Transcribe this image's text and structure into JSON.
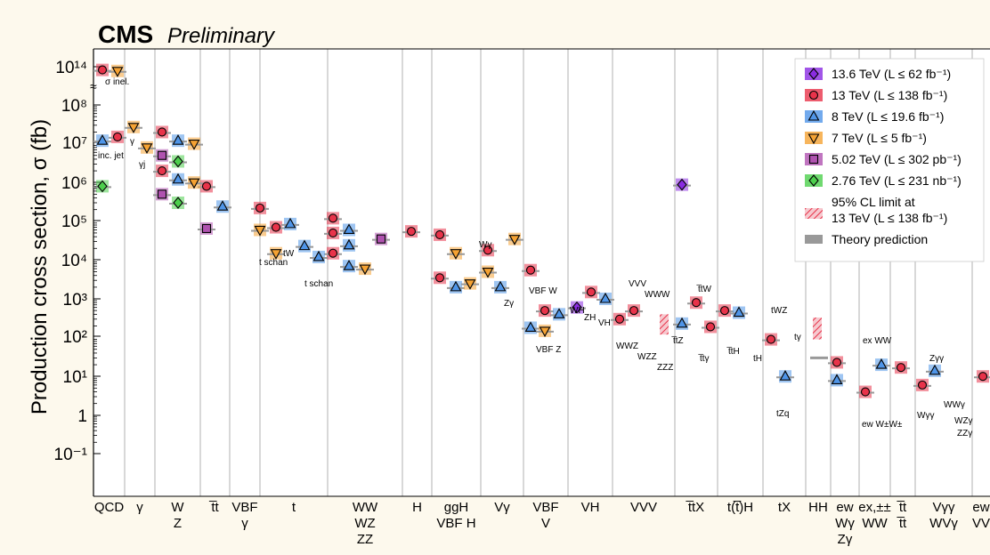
{
  "header": {
    "experiment": "CMS",
    "status": "Preliminary"
  },
  "chart_data": {
    "type": "scatter",
    "ylabel": "Production cross section, σ (fb)",
    "yscale": "log",
    "y_tick_labels": [
      "10¹⁴",
      "10⁸",
      "10⁷",
      "10⁶",
      "10⁵",
      "10⁴",
      "10³",
      "10²",
      "10¹",
      "1",
      "10⁻¹"
    ],
    "groups": [
      {
        "lines": [
          "QCD"
        ]
      },
      {
        "lines": [
          "γ"
        ]
      },
      {
        "lines": [
          "W",
          "Z"
        ]
      },
      {
        "lines": [
          "t̅t"
        ]
      },
      {
        "lines": [
          "VBF",
          "γ"
        ]
      },
      {
        "lines": [
          "t"
        ]
      },
      {
        "lines": [
          "WW",
          "WZ",
          "ZZ"
        ]
      },
      {
        "lines": [
          "H"
        ]
      },
      {
        "lines": [
          "ggH",
          "VBF H"
        ]
      },
      {
        "lines": [
          "Vγ"
        ]
      },
      {
        "lines": [
          "VBF",
          "V"
        ]
      },
      {
        "lines": [
          "VH"
        ]
      },
      {
        "lines": [
          "VVV"
        ]
      },
      {
        "lines": [
          "t̅tX"
        ]
      },
      {
        "lines": [
          "t(t̅)H"
        ]
      },
      {
        "lines": [
          "tX"
        ]
      },
      {
        "lines": [
          "HH"
        ]
      },
      {
        "lines": [
          "ew",
          "Wγ",
          "Zγ"
        ]
      },
      {
        "lines": [
          "ex,±±",
          "WW"
        ]
      },
      {
        "lines": [
          "t̅t",
          "t̅t"
        ]
      },
      {
        "lines": [
          "Vγγ",
          "WVγ"
        ]
      },
      {
        "lines": [
          "ew",
          "VV"
        ]
      }
    ],
    "legend": {
      "position": "top-right",
      "entries": [
        {
          "label": "13.6 TeV (L ≤ 62 fb⁻¹)",
          "color": "#8a2be2",
          "marker": "diamond"
        },
        {
          "label": "13 TeV (L ≤ 138 fb⁻¹)",
          "color": "#e8334a",
          "marker": "circle"
        },
        {
          "label": "8 TeV (L ≤ 19.6 fb⁻¹)",
          "color": "#4f95e8",
          "marker": "triangle-up"
        },
        {
          "label": "7 TeV (L ≤ 5 fb⁻¹)",
          "color": "#f5a233",
          "marker": "triangle-down"
        },
        {
          "label": "5.02 TeV (L ≤ 302 pb⁻¹)",
          "color": "#b052b0",
          "marker": "square"
        },
        {
          "label": "2.76 TeV (L ≤ 231 nb⁻¹)",
          "color": "#4ccf4c",
          "marker": "diamond"
        },
        {
          "label": "95% CL limit at",
          "label2": "13 TeV (L ≤ 138 fb⁻¹)",
          "color": "#e8334a",
          "marker": "hatch"
        },
        {
          "label": "Theory prediction",
          "color": "#999999",
          "marker": "bar"
        }
      ]
    },
    "annotations": [
      "σ inel.",
      "inc. jet",
      "γ",
      "γj",
      "t schan",
      "tW",
      "t schan",
      "Wγ",
      "Zγ",
      "VBF W",
      "VBF Z",
      "WH",
      "ZH",
      "VH",
      "VVV",
      "WWW",
      "WWZ",
      "WZZ",
      "ZZZ",
      "t̅tW",
      "t̅tZ",
      "t̅tγ",
      "t̅tH",
      "tH",
      "tWZ",
      "tγ",
      "tZq",
      "ex WW",
      "ew W±W±",
      "Zγγ",
      "Wγγ",
      "WWγ",
      "WZγ",
      "ZZγ"
    ],
    "series": [
      {
        "name": "13.6 TeV (L ≤ 62 fb⁻¹)",
        "points": [
          {
            "group": "t̅tX",
            "label": "t̅t",
            "y": 880000
          },
          {
            "group": "VH",
            "label": "VH",
            "y": 600
          }
        ]
      },
      {
        "name": "13 TeV (L ≤ 138 fb⁻¹)",
        "points": [
          {
            "group": "QCD",
            "label": "σ inel.",
            "y": 50000000000000.0
          },
          {
            "group": "QCD",
            "label": "inc. jet",
            "y": 15000000.0
          },
          {
            "group": "W",
            "label": "W",
            "y": 20000000.0
          },
          {
            "group": "Z",
            "label": "Z",
            "y": 2000000.0
          },
          {
            "group": "t̅t",
            "label": "t̅t",
            "y": 800000.0
          },
          {
            "group": "t",
            "label": "t",
            "y": 220000.0
          },
          {
            "group": "t",
            "label": "tW",
            "y": 70000.0
          },
          {
            "group": "WW",
            "label": "WW",
            "y": 120000.0
          },
          {
            "group": "WZ",
            "label": "WZ",
            "y": 50000.0
          },
          {
            "group": "ZZ",
            "label": "ZZ",
            "y": 15000.0
          },
          {
            "group": "H",
            "label": "H",
            "y": 55000.0
          },
          {
            "group": "ggH",
            "label": "ggH",
            "y": 45000.0
          },
          {
            "group": "VBF H",
            "label": "VBF H",
            "y": 3500.0
          },
          {
            "group": "Vγ",
            "label": "Wγ",
            "y": 18000.0
          },
          {
            "group": "VBF V",
            "label": "VBF W",
            "y": 5500.0
          },
          {
            "group": "VBF V",
            "label": "VBF Z",
            "y": 500
          },
          {
            "group": "VH",
            "label": "WH",
            "y": 1500.0
          },
          {
            "group": "VVV",
            "label": "WWZ",
            "y": 300
          },
          {
            "group": "VVV",
            "label": "WWW",
            "y": 500
          },
          {
            "group": "t̅tX",
            "label": "t̅tW",
            "y": 800
          },
          {
            "group": "t̅tX",
            "label": "t̅tγ",
            "y": 190
          },
          {
            "group": "t(t̅)H",
            "label": "t̅tH",
            "y": 500
          },
          {
            "group": "tX",
            "label": "tZq",
            "y": 90
          },
          {
            "group": "ew Wγ",
            "label": "Wγ",
            "y": 23
          },
          {
            "group": "ex WW",
            "label": "W±W±",
            "y": 4
          },
          {
            "group": "t̅t t̅t",
            "label": "t̅tt̅t",
            "y": 17
          },
          {
            "group": "Vγγ",
            "label": "Wγγ",
            "y": 6
          },
          {
            "group": "ew VV",
            "label": "VV",
            "y": 10
          }
        ]
      },
      {
        "name": "8 TeV (L ≤ 19.6 fb⁻¹)",
        "points": [
          {
            "group": "QCD",
            "label": "inc. jet",
            "y": 12000000.0
          },
          {
            "group": "W",
            "label": "W",
            "y": 12000000.0
          },
          {
            "group": "Z",
            "label": "Z",
            "y": 1200000.0
          },
          {
            "group": "t̅t",
            "label": "t̅t",
            "y": 240000.0
          },
          {
            "group": "t",
            "label": "t",
            "y": 85000.0
          },
          {
            "group": "t",
            "label": "tW",
            "y": 23000.0
          },
          {
            "group": "t",
            "label": "t schan",
            "y": 12000.0
          },
          {
            "group": "WW",
            "label": "WW",
            "y": 60000.0
          },
          {
            "group": "WZ",
            "label": "WZ",
            "y": 24000.0
          },
          {
            "group": "ZZ",
            "label": "ZZ",
            "y": 7000.0
          },
          {
            "group": "VBF H",
            "label": "VBF H",
            "y": 2000.0
          },
          {
            "group": "Vγ",
            "label": "Zγ",
            "y": 2000.0
          },
          {
            "group": "VBF V",
            "label": "VBF W",
            "y": 400
          },
          {
            "group": "VBF V",
            "label": "VBF Z",
            "y": 180
          },
          {
            "group": "VH",
            "label": "VH",
            "y": 1000.0
          },
          {
            "group": "t̅tX",
            "label": "t̅tZ",
            "y": 230
          },
          {
            "group": "t(t̅)H",
            "label": "t̅tH",
            "y": 440
          },
          {
            "group": "tX",
            "label": "tZq",
            "y": 10
          },
          {
            "group": "ew Zγ",
            "label": "Zγ",
            "y": 8
          },
          {
            "group": "ex WW",
            "label": "ex WW",
            "y": 20
          },
          {
            "group": "Vγγ",
            "label": "Zγγ",
            "y": 14
          }
        ]
      },
      {
        "name": "7 TeV (L ≤ 5 fb⁻¹)",
        "points": [
          {
            "group": "QCD",
            "label": "σ inel.",
            "y": 40000000000000.0
          },
          {
            "group": "γ",
            "label": "γ",
            "y": 27000000.0
          },
          {
            "group": "γ",
            "label": "γj",
            "y": 8000000.0
          },
          {
            "group": "W",
            "label": "W",
            "y": 10000000.0
          },
          {
            "group": "Z",
            "label": "Z",
            "y": 1000000.0
          },
          {
            "group": "t",
            "label": "t",
            "y": 60000.0
          },
          {
            "group": "t",
            "label": "tW",
            "y": 15000.0
          },
          {
            "group": "ZZ",
            "label": "ZZ",
            "y": 6000.0
          },
          {
            "group": "ggH",
            "label": "ggH",
            "y": 15000.0
          },
          {
            "group": "VBF H",
            "label": "VBF H",
            "y": 2500.0
          },
          {
            "group": "Vγ",
            "label": "Wγ",
            "y": 35000.0
          },
          {
            "group": "Vγ",
            "label": "Zγ",
            "y": 5000.0
          },
          {
            "group": "VBF V",
            "label": "VBF Z",
            "y": 150
          }
        ]
      },
      {
        "name": "5.02 TeV (L ≤ 302 pb⁻¹)",
        "points": [
          {
            "group": "W",
            "label": "W",
            "y": 5000000.0
          },
          {
            "group": "Z",
            "label": "Z",
            "y": 500000.0
          },
          {
            "group": "t̅t",
            "label": "t̅t",
            "y": 65000.0
          },
          {
            "group": "ZZ",
            "label": "WW",
            "y": 35000.0
          }
        ]
      },
      {
        "name": "2.76 TeV (L ≤ 231 nb⁻¹)",
        "points": [
          {
            "group": "QCD",
            "label": "inc. jet",
            "y": 800000.0
          },
          {
            "group": "W",
            "label": "W",
            "y": 3500000.0
          },
          {
            "group": "Z",
            "label": "Z",
            "y": 300000.0
          }
        ]
      }
    ]
  }
}
